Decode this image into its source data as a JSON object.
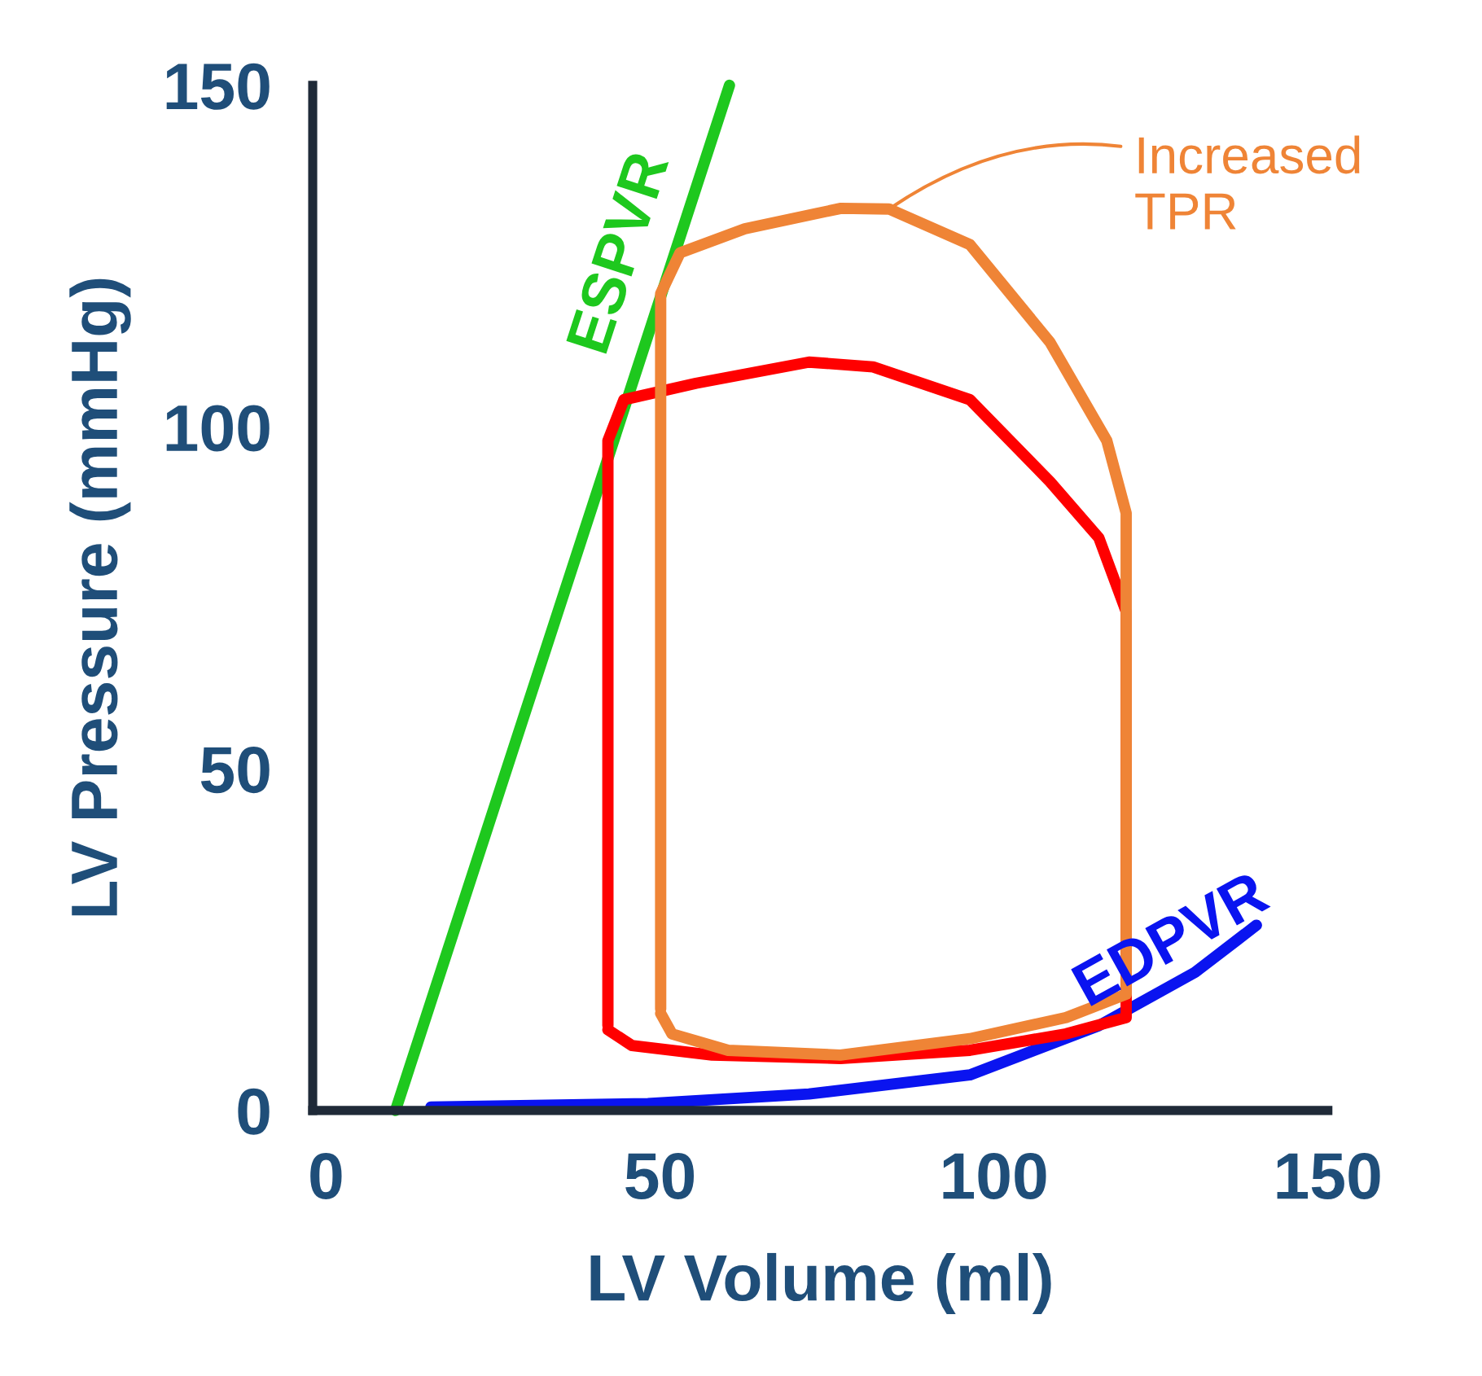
{
  "chart_data": {
    "type": "line",
    "xlabel": "LV Volume (ml)",
    "ylabel": "LV Pressure (mmHg)",
    "xlim": [
      -2,
      150
    ],
    "ylim": [
      0,
      150
    ],
    "xticks": [
      0,
      50,
      100,
      150
    ],
    "yticks": [
      0,
      50,
      100,
      150
    ],
    "grid": false,
    "legend": false,
    "marker": "none",
    "line_style": "solid",
    "series": [
      {
        "name": "ESPVR",
        "color": "#1ec81e",
        "x": [
          10.4,
          60.4
        ],
        "values": [
          0,
          150
        ]
      },
      {
        "name": "EDPVR",
        "color": "#0a14f0",
        "x": [
          15.7,
          48.2,
          72.3,
          96.4,
          115.7,
          130.1,
          139.3
        ],
        "values": [
          0.5,
          1,
          2.4,
          5.2,
          12.4,
          20.2,
          27.1
        ]
      },
      {
        "color": "#ff0000",
        "x": [
          42.2,
          42.2,
          44.6,
          55.4,
          72.3,
          81.9,
          96.4,
          108.4,
          115.7,
          119.8,
          119.8,
          110.8,
          96.4,
          77,
          57.8,
          45.8,
          42.2
        ],
        "values": [
          12.4,
          98,
          104,
          106.4,
          109.5,
          108.8,
          104,
          92,
          83.8,
          73,
          13.6,
          11.2,
          8.8,
          7.6,
          8.1,
          9.5,
          11.8
        ]
      },
      {
        "color": "#ef8436",
        "x": [
          50.1,
          50.1,
          53,
          62.7,
          77.1,
          84.3,
          96.4,
          108.4,
          116.9,
          119.8,
          119.8,
          110.8,
          96.4,
          77,
          60.2,
          51.8,
          50.1
        ],
        "values": [
          14.8,
          119.5,
          125.5,
          129,
          132,
          131.9,
          126.7,
          112.4,
          98,
          87.4,
          17,
          13.6,
          10.5,
          8.1,
          8.8,
          11.2,
          14.2
        ]
      }
    ],
    "annotations": [
      {
        "text": "Increased\nTPR",
        "x": 84.3,
        "y": 131.9
      }
    ]
  }
}
